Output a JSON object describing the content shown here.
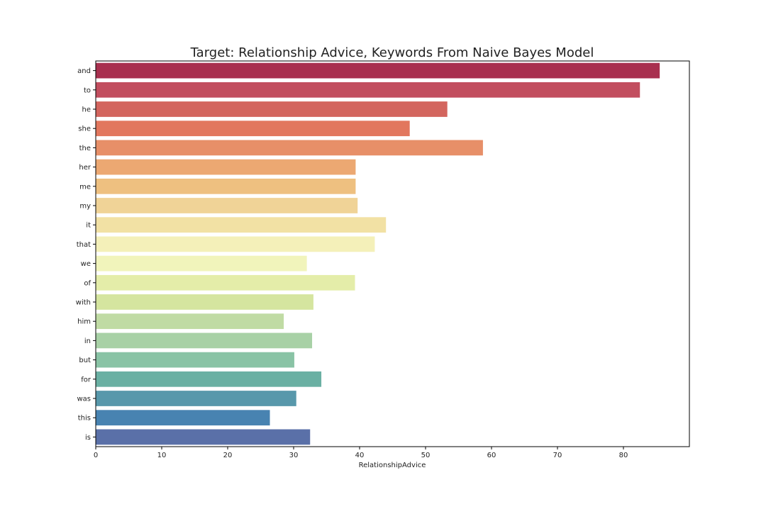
{
  "chart_data": {
    "type": "bar",
    "orientation": "horizontal",
    "title": "Target: Relationship Advice,  Keywords From Naive Bayes Model",
    "xlabel": "RelationshipAdvice",
    "ylabel": "",
    "xlim": [
      0,
      90
    ],
    "x_ticks": [
      0,
      10,
      20,
      30,
      40,
      50,
      60,
      70,
      80
    ],
    "grid": false,
    "legend": "none",
    "categories": [
      "and",
      "to",
      "he",
      "she",
      "the",
      "her",
      "me",
      "my",
      "it",
      "that",
      "we",
      "of",
      "with",
      "him",
      "in",
      "but",
      "for",
      "was",
      "this",
      "is"
    ],
    "values": [
      85.5,
      82.5,
      53.3,
      47.6,
      58.7,
      39.4,
      39.4,
      39.7,
      44.0,
      42.3,
      32.0,
      39.3,
      33.0,
      28.5,
      32.8,
      30.1,
      34.2,
      30.4,
      26.4,
      32.5
    ],
    "colors": [
      "#a8304f",
      "#c24e5f",
      "#d3655e",
      "#e2775e",
      "#e78f68",
      "#eca872",
      "#eec080",
      "#f0d397",
      "#f2e1a4",
      "#f4f0b9",
      "#f1f4bb",
      "#e4eda9",
      "#d5e59f",
      "#c0dba4",
      "#a8d1a6",
      "#89c3a5",
      "#6ab0a3",
      "#5898ab",
      "#4883b1",
      "#5a70a8"
    ]
  }
}
